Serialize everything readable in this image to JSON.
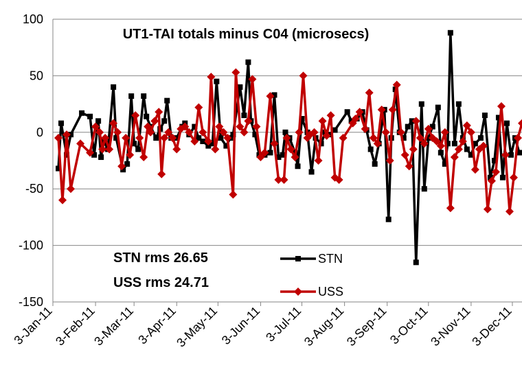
{
  "chart_data": {
    "type": "line",
    "title": "UT1-TAI totals minus C04 (microsecs)",
    "annotations": [
      "STN  rms 26.65",
      "USS   rms 24.71"
    ],
    "xlim": [
      "2011-01-03",
      "2011-12-10"
    ],
    "xticks": [
      {
        "value": "2011-01-03",
        "label": "3-Jan-11"
      },
      {
        "value": "2011-02-03",
        "label": "3-Feb-11"
      },
      {
        "value": "2011-03-03",
        "label": "3-Mar-11"
      },
      {
        "value": "2011-04-03",
        "label": "3-Apr-11"
      },
      {
        "value": "2011-05-03",
        "label": "3-May-11"
      },
      {
        "value": "2011-06-03",
        "label": "3-Jun-11"
      },
      {
        "value": "2011-07-03",
        "label": "3-Jul-11"
      },
      {
        "value": "2011-08-03",
        "label": "3-Aug-11"
      },
      {
        "value": "2011-09-03",
        "label": "3-Sep-11"
      },
      {
        "value": "2011-10-03",
        "label": "3-Oct-11"
      },
      {
        "value": "2011-11-03",
        "label": "3-Nov-11"
      },
      {
        "value": "2011-12-03",
        "label": "3-Dec-11"
      }
    ],
    "ylim": [
      -150,
      100
    ],
    "yticks": [
      -150,
      -100,
      -50,
      0,
      50,
      100
    ],
    "grid": true,
    "series": [
      {
        "name": "STN",
        "color": "#000000",
        "marker": "square",
        "x": [
          "2011-01-07",
          "2011-01-09",
          "2011-01-13",
          "2011-01-16",
          "2011-01-24",
          "2011-01-30",
          "2011-02-02",
          "2011-02-05",
          "2011-02-07",
          "2011-02-09",
          "2011-02-12",
          "2011-02-16",
          "2011-02-18",
          "2011-02-23",
          "2011-02-26",
          "2011-03-01",
          "2011-03-03",
          "2011-03-06",
          "2011-03-10",
          "2011-03-12",
          "2011-03-15",
          "2011-03-19",
          "2011-03-22",
          "2011-03-25",
          "2011-03-27",
          "2011-03-30",
          "2011-04-03",
          "2011-04-07",
          "2011-04-09",
          "2011-04-12",
          "2011-04-16",
          "2011-04-19",
          "2011-04-22",
          "2011-04-26",
          "2011-04-29",
          "2011-05-02",
          "2011-05-05",
          "2011-05-09",
          "2011-05-12",
          "2011-05-14",
          "2011-05-19",
          "2011-05-22",
          "2011-05-25",
          "2011-05-27",
          "2011-05-30",
          "2011-06-02",
          "2011-06-06",
          "2011-06-10",
          "2011-06-13",
          "2011-06-16",
          "2011-06-19",
          "2011-06-21",
          "2011-06-24",
          "2011-06-28",
          "2011-06-30",
          "2011-07-03",
          "2011-07-07",
          "2011-07-10",
          "2011-07-13",
          "2011-07-17",
          "2011-07-20",
          "2011-07-23",
          "2011-07-27",
          "2011-08-05",
          "2011-08-08",
          "2011-08-12",
          "2011-08-16",
          "2011-08-19",
          "2011-08-22",
          "2011-08-25",
          "2011-08-28",
          "2011-09-01",
          "2011-09-04",
          "2011-09-06",
          "2011-09-09",
          "2011-09-12",
          "2011-09-15",
          "2011-09-18",
          "2011-09-21",
          "2011-09-24",
          "2011-09-28",
          "2011-09-30",
          "2011-10-03",
          "2011-10-06",
          "2011-10-10",
          "2011-10-12",
          "2011-10-15",
          "2011-10-17",
          "2011-10-19",
          "2011-10-22",
          "2011-10-25",
          "2011-10-28",
          "2011-10-31",
          "2011-11-03",
          "2011-11-06",
          "2011-11-10",
          "2011-11-13",
          "2011-11-17",
          "2011-11-20",
          "2011-11-23",
          "2011-11-26",
          "2011-11-29",
          "2011-12-02",
          "2011-12-05",
          "2011-12-08"
        ],
        "values": [
          -32,
          8,
          -20,
          -2,
          17,
          14,
          -20,
          10,
          -22,
          -8,
          -15,
          40,
          -5,
          -33,
          -28,
          32,
          -10,
          -15,
          32,
          14,
          5,
          -5,
          3,
          10,
          28,
          -5,
          -5,
          5,
          8,
          -2,
          5,
          -5,
          -8,
          -12,
          -10,
          45,
          -5,
          -12,
          -5,
          -2,
          40,
          15,
          62,
          10,
          -2,
          -20,
          -20,
          -18,
          33,
          -22,
          -20,
          0,
          -5,
          -18,
          -30,
          12,
          0,
          -35,
          -5,
          -10,
          0,
          -2,
          2,
          18,
          10,
          12,
          18,
          2,
          -15,
          -28,
          -10,
          20,
          -77,
          -5,
          38,
          0,
          -5,
          5,
          10,
          -115,
          25,
          -50,
          -5,
          5,
          22,
          -18,
          -28,
          -10,
          88,
          -10,
          25,
          -5,
          -15,
          -20,
          -10,
          -5,
          15,
          -40,
          -25,
          13,
          -40,
          8,
          -20,
          -5,
          -18
        ]
      },
      {
        "name": "USS",
        "color": "#c00000",
        "marker": "diamond",
        "x": [
          "2011-01-07",
          "2011-01-10",
          "2011-01-13",
          "2011-01-16",
          "2011-01-23",
          "2011-01-30",
          "2011-02-03",
          "2011-02-06",
          "2011-02-08",
          "2011-02-10",
          "2011-02-13",
          "2011-02-16",
          "2011-02-19",
          "2011-02-22",
          "2011-02-25",
          "2011-02-28",
          "2011-03-04",
          "2011-03-07",
          "2011-03-10",
          "2011-03-13",
          "2011-03-15",
          "2011-03-18",
          "2011-03-21",
          "2011-03-23",
          "2011-03-25",
          "2011-03-28",
          "2011-03-31",
          "2011-04-03",
          "2011-04-06",
          "2011-04-09",
          "2011-04-12",
          "2011-04-16",
          "2011-04-19",
          "2011-04-22",
          "2011-04-26",
          "2011-04-28",
          "2011-05-01",
          "2011-05-04",
          "2011-05-07",
          "2011-05-10",
          "2011-05-14",
          "2011-05-16",
          "2011-05-19",
          "2011-05-22",
          "2011-05-25",
          "2011-05-28",
          "2011-05-31",
          "2011-06-03",
          "2011-06-06",
          "2011-06-10",
          "2011-06-13",
          "2011-06-16",
          "2011-06-20",
          "2011-06-22",
          "2011-06-25",
          "2011-06-28",
          "2011-07-01",
          "2011-07-04",
          "2011-07-07",
          "2011-07-09",
          "2011-07-12",
          "2011-07-15",
          "2011-07-18",
          "2011-07-21",
          "2011-07-24",
          "2011-07-27",
          "2011-07-30",
          "2011-08-02",
          "2011-08-09",
          "2011-08-11",
          "2011-08-14",
          "2011-08-18",
          "2011-08-21",
          "2011-08-24",
          "2011-08-27",
          "2011-08-30",
          "2011-09-02",
          "2011-09-05",
          "2011-09-07",
          "2011-09-10",
          "2011-09-13",
          "2011-09-16",
          "2011-09-19",
          "2011-09-22",
          "2011-09-24",
          "2011-09-27",
          "2011-09-30",
          "2011-10-03",
          "2011-10-06",
          "2011-10-09",
          "2011-10-12",
          "2011-10-15",
          "2011-10-19",
          "2011-10-22",
          "2011-10-25",
          "2011-10-28",
          "2011-10-31",
          "2011-11-03",
          "2011-11-06",
          "2011-11-09",
          "2011-11-12",
          "2011-11-15",
          "2011-11-18",
          "2011-11-21",
          "2011-11-25",
          "2011-11-28",
          "2011-12-01",
          "2011-12-04",
          "2011-12-07",
          "2011-12-10"
        ],
        "values": [
          -5,
          -60,
          -2,
          -50,
          -10,
          -18,
          5,
          0,
          -15,
          -5,
          -15,
          8,
          0,
          -30,
          -5,
          -20,
          15,
          -5,
          -22,
          5,
          0,
          10,
          18,
          -37,
          -5,
          0,
          -5,
          -15,
          3,
          5,
          0,
          -8,
          22,
          0,
          -8,
          49,
          -15,
          5,
          0,
          -5,
          -55,
          53,
          5,
          0,
          10,
          47,
          5,
          -22,
          -18,
          32,
          -10,
          -42,
          -42,
          -5,
          -15,
          -22,
          0,
          50,
          -5,
          -2,
          0,
          -25,
          10,
          -3,
          15,
          -40,
          -42,
          -5,
          8,
          12,
          18,
          3,
          35,
          -5,
          -10,
          20,
          0,
          -25,
          20,
          42,
          0,
          -20,
          -30,
          -15,
          10,
          -5,
          -10,
          3,
          -5,
          -8,
          -12,
          0,
          -67,
          -22,
          -15,
          -8,
          6,
          0,
          -33,
          -15,
          -12,
          -68,
          -43,
          -35,
          23,
          -20,
          -70,
          -40,
          -5,
          8
        ]
      }
    ]
  }
}
